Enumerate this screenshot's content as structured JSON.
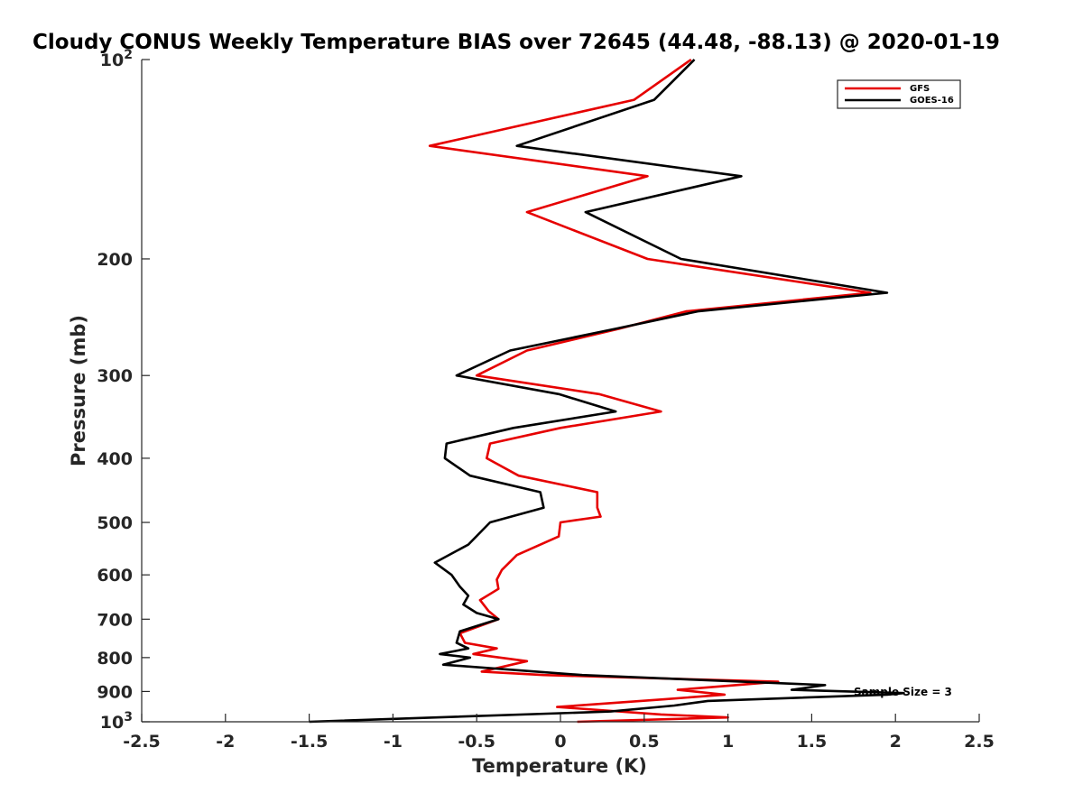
{
  "chart_data": {
    "type": "line",
    "title": "Cloudy CONUS Weekly Temperature BIAS over 72645 (44.48, -88.13) @ 2020-01-19",
    "xlabel": "Temperature (K)",
    "ylabel": "Pressure (mb)",
    "xlim": [
      -2.5,
      2.5
    ],
    "ylim": [
      100,
      1000
    ],
    "y_scale": "log",
    "y_reversed": true,
    "x_ticks": [
      "-2.5",
      "-2",
      "-1.5",
      "-1",
      "-0.5",
      "0",
      "0.5",
      "1",
      "1.5",
      "2",
      "2.5"
    ],
    "y_ticks": [
      {
        "value": 100,
        "base": "10",
        "exp": "2"
      },
      {
        "value": 200,
        "label": "200"
      },
      {
        "value": 300,
        "label": "300"
      },
      {
        "value": 400,
        "label": "400"
      },
      {
        "value": 500,
        "label": "500"
      },
      {
        "value": 600,
        "label": "600"
      },
      {
        "value": 700,
        "label": "700"
      },
      {
        "value": 800,
        "label": "800"
      },
      {
        "value": 900,
        "label": "900"
      },
      {
        "value": 1000,
        "base": "10",
        "exp": "3"
      }
    ],
    "grid": false,
    "legend_position": "top-right",
    "annotation": "Sample Size = 3",
    "series": [
      {
        "name": "GFS",
        "color": "#e60000",
        "points": [
          [
            0.78,
            100
          ],
          [
            0.44,
            115
          ],
          [
            -0.78,
            135
          ],
          [
            0.52,
            150
          ],
          [
            -0.2,
            170
          ],
          [
            0.52,
            200
          ],
          [
            1.85,
            225
          ],
          [
            0.75,
            240
          ],
          [
            0.35,
            255
          ],
          [
            -0.2,
            275
          ],
          [
            -0.5,
            300
          ],
          [
            0.23,
            320
          ],
          [
            0.6,
            340
          ],
          [
            0.0,
            360
          ],
          [
            -0.42,
            380
          ],
          [
            -0.44,
            400
          ],
          [
            -0.25,
            425
          ],
          [
            0.22,
            450
          ],
          [
            0.22,
            475
          ],
          [
            0.24,
            490
          ],
          [
            0.0,
            500
          ],
          [
            -0.01,
            525
          ],
          [
            -0.26,
            560
          ],
          [
            -0.35,
            590
          ],
          [
            -0.38,
            610
          ],
          [
            -0.37,
            630
          ],
          [
            -0.48,
            655
          ],
          [
            -0.43,
            680
          ],
          [
            -0.37,
            700
          ],
          [
            -0.6,
            735
          ],
          [
            -0.57,
            760
          ],
          [
            -0.38,
            775
          ],
          [
            -0.52,
            790
          ],
          [
            -0.2,
            810
          ],
          [
            -0.47,
            840
          ],
          [
            -0.1,
            850
          ],
          [
            1.3,
            870
          ],
          [
            0.7,
            895
          ],
          [
            0.98,
            910
          ],
          [
            0.62,
            925
          ],
          [
            -0.02,
            950
          ],
          [
            0.6,
            975
          ],
          [
            1.0,
            985
          ],
          [
            0.1,
            1000
          ]
        ]
      },
      {
        "name": "GOES-16",
        "color": "#000000",
        "points": [
          [
            0.8,
            100
          ],
          [
            0.56,
            115
          ],
          [
            -0.26,
            135
          ],
          [
            1.08,
            150
          ],
          [
            0.15,
            170
          ],
          [
            0.72,
            200
          ],
          [
            1.95,
            225
          ],
          [
            0.82,
            240
          ],
          [
            0.33,
            255
          ],
          [
            -0.3,
            275
          ],
          [
            -0.62,
            300
          ],
          [
            -0.01,
            320
          ],
          [
            0.33,
            340
          ],
          [
            -0.28,
            360
          ],
          [
            -0.68,
            380
          ],
          [
            -0.69,
            400
          ],
          [
            -0.54,
            425
          ],
          [
            -0.12,
            450
          ],
          [
            -0.1,
            475
          ],
          [
            -0.42,
            500
          ],
          [
            -0.55,
            540
          ],
          [
            -0.75,
            575
          ],
          [
            -0.65,
            600
          ],
          [
            -0.6,
            625
          ],
          [
            -0.55,
            645
          ],
          [
            -0.58,
            665
          ],
          [
            -0.5,
            685
          ],
          [
            -0.37,
            700
          ],
          [
            -0.6,
            730
          ],
          [
            -0.62,
            760
          ],
          [
            -0.55,
            775
          ],
          [
            -0.72,
            790
          ],
          [
            -0.54,
            800
          ],
          [
            -0.7,
            820
          ],
          [
            0.13,
            850
          ],
          [
            1.58,
            880
          ],
          [
            1.38,
            895
          ],
          [
            2.05,
            905
          ],
          [
            1.95,
            910
          ],
          [
            0.88,
            930
          ],
          [
            0.68,
            945
          ],
          [
            0.3,
            965
          ],
          [
            -1.5,
            1000
          ]
        ]
      }
    ]
  }
}
